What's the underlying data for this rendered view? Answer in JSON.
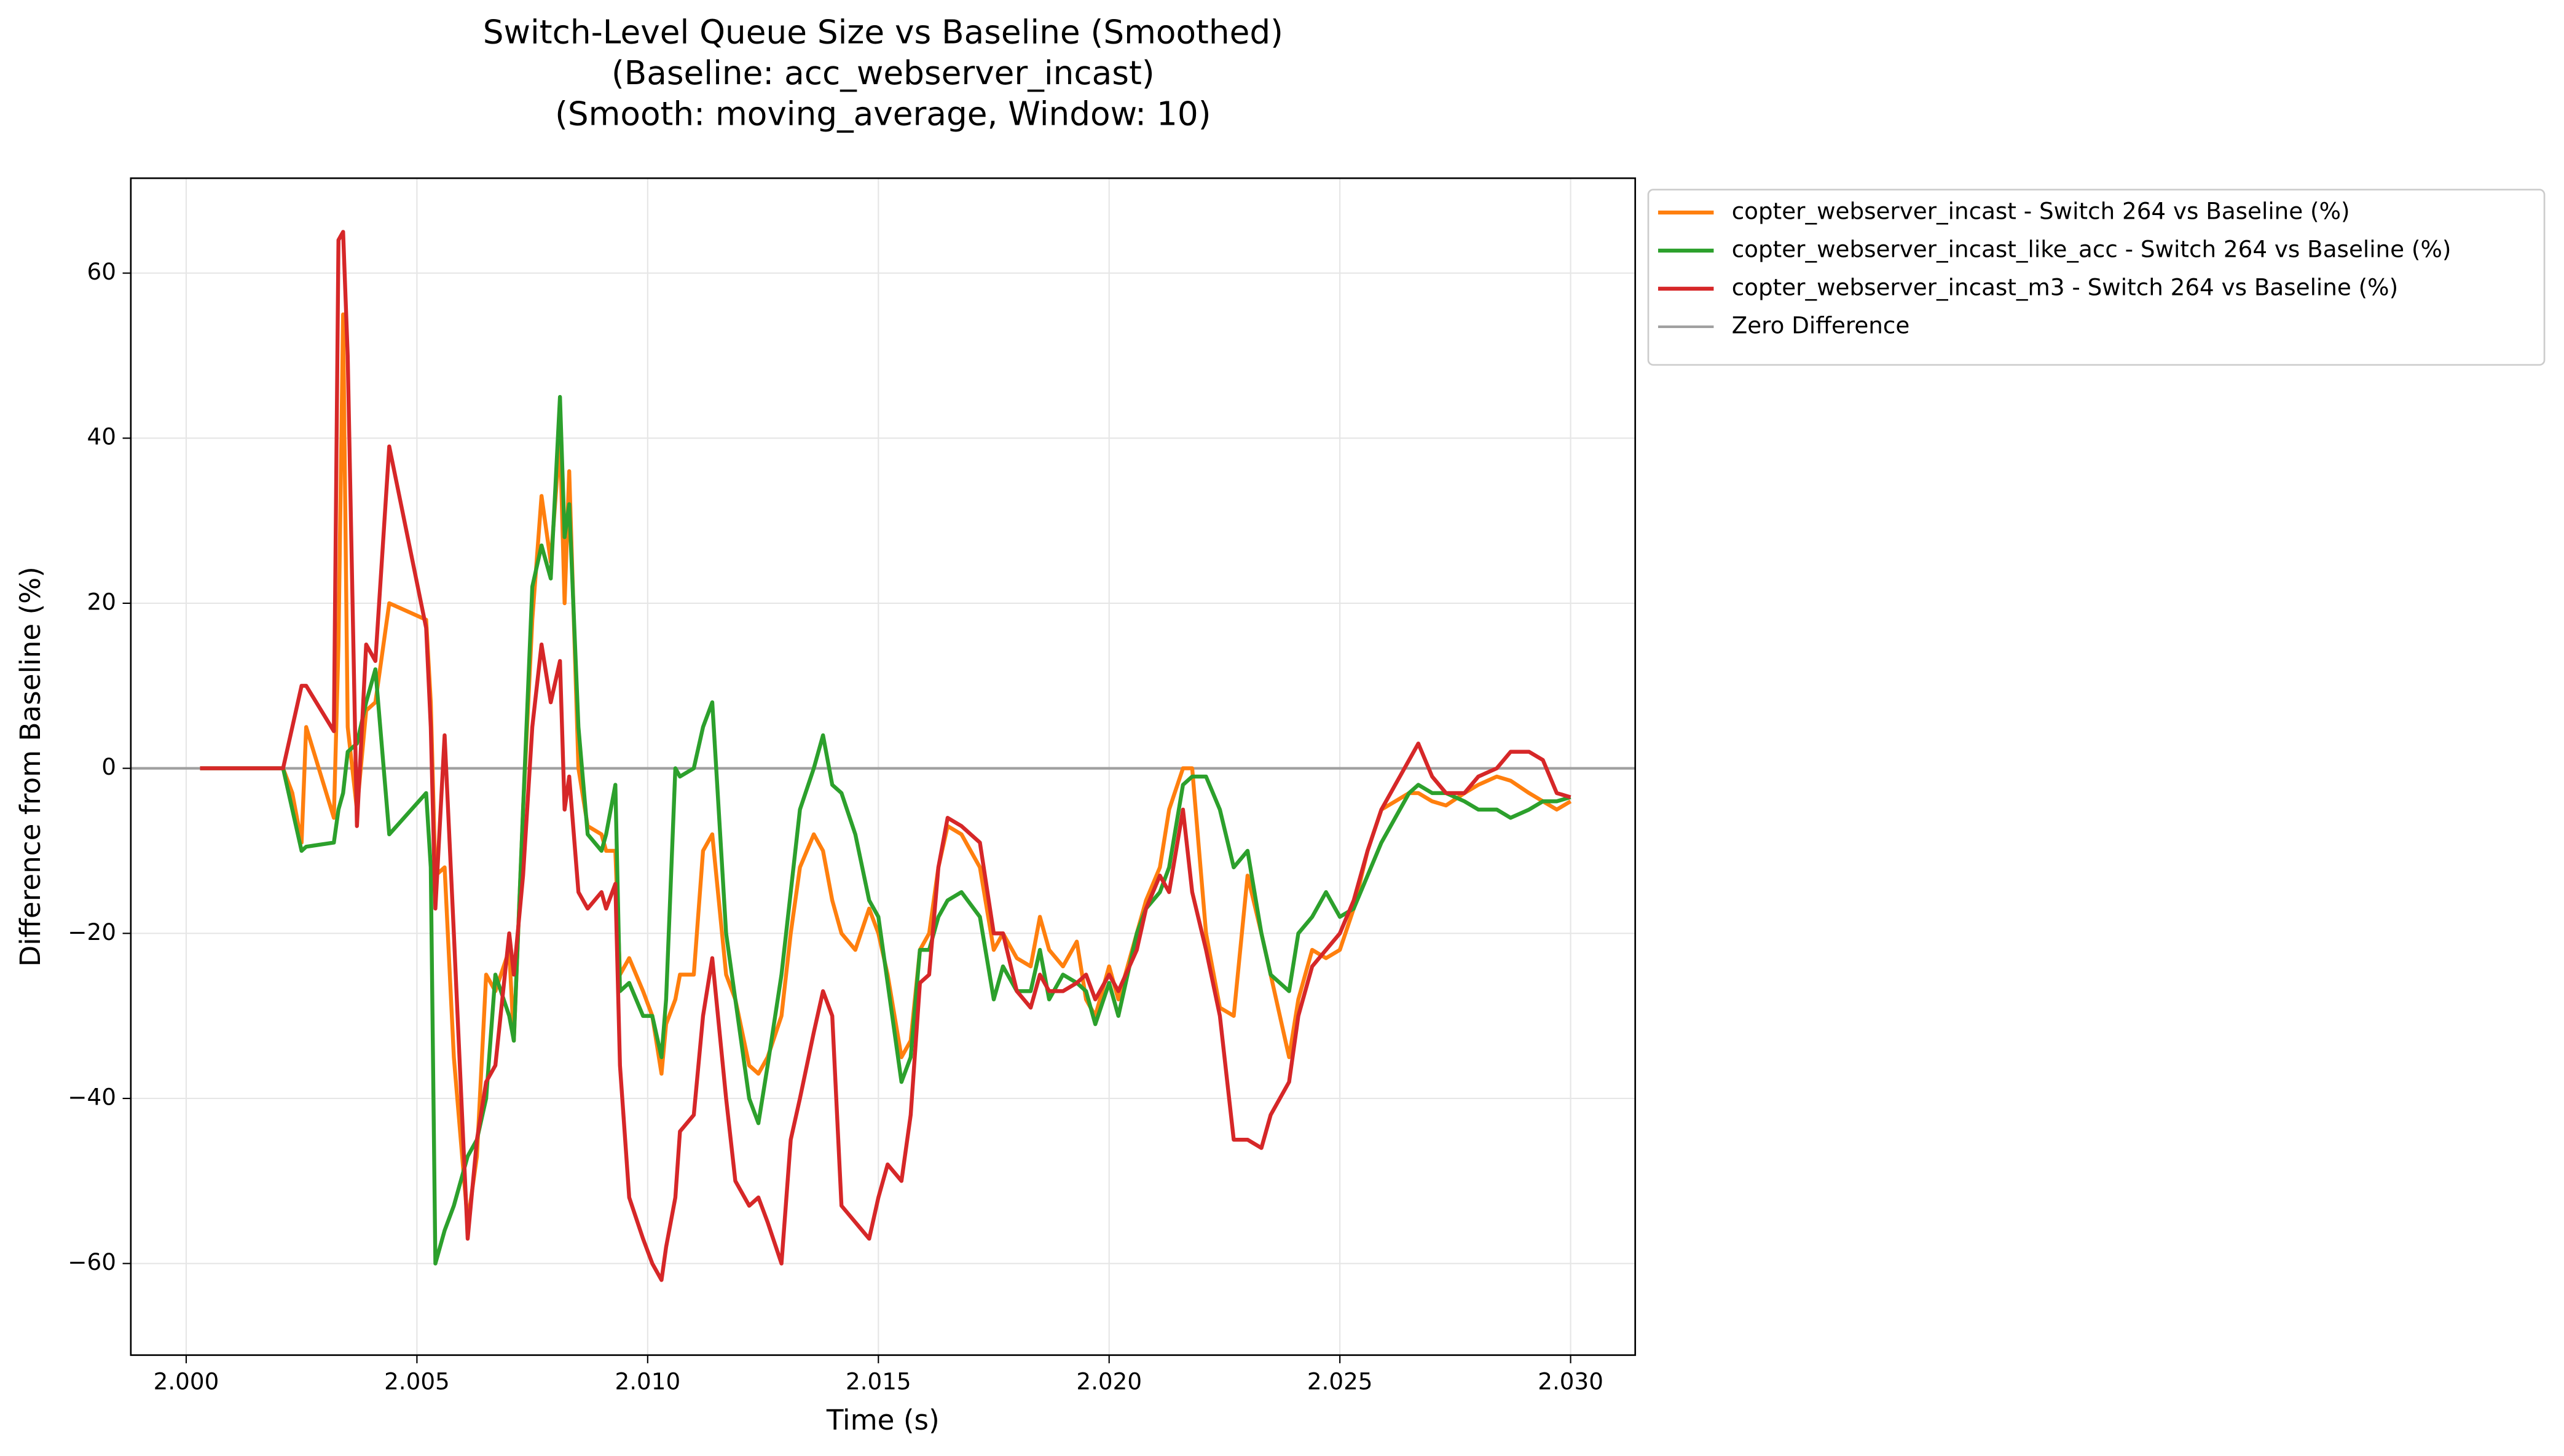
{
  "chart_data": {
    "type": "line",
    "title": [
      "Switch-Level Queue Size vs Baseline (Smoothed)",
      "(Baseline: acc_webserver_incast)",
      "(Smooth: moving_average, Window: 10)"
    ],
    "x_label": "Time (s)",
    "y_label": "Difference from Baseline (%)",
    "x": [
      2.0003,
      2.0021,
      2.0023,
      2.0025,
      2.0026,
      2.0032,
      2.0033,
      2.0034,
      2.0035,
      2.0037,
      2.0039,
      2.0041,
      2.0044,
      2.0052,
      2.0053,
      2.0054,
      2.0056,
      2.0058,
      2.0061,
      2.0063,
      2.0065,
      2.0067,
      2.007,
      2.0071,
      2.0073,
      2.0075,
      2.0077,
      2.0079,
      2.0081,
      2.0082,
      2.0083,
      2.0085,
      2.0087,
      2.009,
      2.0091,
      2.0093,
      2.0094,
      2.0096,
      2.0099,
      2.0101,
      2.0103,
      2.0104,
      2.0106,
      2.0107,
      2.011,
      2.0112,
      2.0114,
      2.0117,
      2.0119,
      2.0122,
      2.0124,
      2.0126,
      2.0129,
      2.0131,
      2.0133,
      2.0136,
      2.0138,
      2.014,
      2.0142,
      2.0145,
      2.0148,
      2.015,
      2.0152,
      2.0155,
      2.0157,
      2.0159,
      2.0161,
      2.0163,
      2.0165,
      2.0168,
      2.0172,
      2.0175,
      2.0177,
      2.018,
      2.0183,
      2.0185,
      2.0187,
      2.019,
      2.0193,
      2.0195,
      2.0197,
      2.02,
      2.0202,
      2.0206,
      2.0208,
      2.0211,
      2.0213,
      2.0216,
      2.0218,
      2.0221,
      2.0224,
      2.0227,
      2.023,
      2.0233,
      2.0235,
      2.0239,
      2.0241,
      2.0244,
      2.0247,
      2.025,
      2.0253,
      2.0256,
      2.0259,
      2.0262,
      2.0265,
      2.0267,
      2.027,
      2.0273,
      2.0277,
      2.028,
      2.0284,
      2.0287,
      2.0291,
      2.0294,
      2.0297,
      2.03
    ],
    "series": [
      {
        "name": "copter_webserver_incast - Switch 264 vs Baseline (%)",
        "color": "#ff7f0e",
        "values": [
          0,
          0,
          -3,
          -9,
          5,
          -6,
          15,
          55,
          5,
          -5,
          7,
          8,
          20,
          18,
          8,
          -13,
          -12,
          -35,
          -55,
          -47,
          -25,
          -27,
          -22,
          -33,
          -5,
          18,
          33,
          25,
          40,
          20,
          36,
          0,
          -7,
          -8,
          -10,
          -10,
          -25,
          -23,
          -27,
          -30,
          -37,
          -31,
          -28,
          -25,
          -25,
          -10,
          -8,
          -25,
          -28,
          -36,
          -37,
          -35,
          -30,
          -20,
          -12,
          -8,
          -10,
          -16,
          -20,
          -22,
          -17,
          -20,
          -25,
          -35,
          -33,
          -22,
          -20,
          -12,
          -7,
          -8,
          -12,
          -22,
          -20,
          -23,
          -24,
          -18,
          -22,
          -24,
          -21,
          -28,
          -30,
          -24,
          -28,
          -20,
          -16,
          -12,
          -5,
          0,
          0,
          -20,
          -29,
          -30,
          -13,
          -20,
          -25,
          -35,
          -28,
          -22,
          -23,
          -22,
          -17,
          -10,
          -5,
          -4,
          -3,
          -3,
          -4,
          -4.5,
          -3,
          -2,
          -1,
          -1.5,
          -3,
          -4,
          -5,
          -4
        ]
      },
      {
        "name": "copter_webserver_incast_like_acc - Switch 264 vs Baseline (%)",
        "color": "#2ca02c",
        "values": [
          0,
          0,
          -5,
          -10,
          -9.5,
          -9,
          -5,
          -3,
          2,
          3,
          8,
          12,
          -8,
          -3,
          -12,
          -60,
          -56,
          -53,
          -47,
          -45,
          -40,
          -25,
          -30,
          -33,
          -5,
          22,
          27,
          23,
          45,
          28,
          32,
          5,
          -8,
          -10,
          -8,
          -2,
          -27,
          -26,
          -30,
          -30,
          -35,
          -28,
          0,
          -1,
          0,
          5,
          8,
          -20,
          -28,
          -40,
          -43,
          -36,
          -25,
          -15,
          -5,
          0,
          4,
          -2,
          -3,
          -8,
          -16,
          -18,
          -26,
          -38,
          -35,
          -22,
          -22,
          -18,
          -16,
          -15,
          -18,
          -28,
          -24,
          -27,
          -27,
          -22,
          -28,
          -25,
          -26,
          -27,
          -31,
          -26,
          -30,
          -20,
          -17,
          -15,
          -12,
          -2,
          -1,
          -1,
          -5,
          -12,
          -10,
          -20,
          -25,
          -27,
          -20,
          -18,
          -15,
          -18,
          -17,
          -13,
          -9,
          -6,
          -3,
          -2,
          -3,
          -3,
          -4,
          -5,
          -5,
          -6,
          -5,
          -4,
          -4,
          -3.5
        ]
      },
      {
        "name": "copter_webserver_incast_m3 - Switch 264 vs Baseline (%)",
        "color": "#d62728",
        "values": [
          0,
          0,
          5,
          10,
          10,
          4.5,
          64,
          65,
          50,
          -7,
          15,
          13,
          39,
          17,
          5,
          -17,
          4,
          -20,
          -57,
          -45,
          -38,
          -36,
          -20,
          -25,
          -13,
          5,
          15,
          8,
          13,
          -5,
          -1,
          -15,
          -17,
          -15,
          -17,
          -14,
          -36,
          -52,
          -57,
          -60,
          -62,
          -58,
          -52,
          -44,
          -42,
          -30,
          -23,
          -40,
          -50,
          -53,
          -52,
          -55,
          -60,
          -45,
          -40,
          -32,
          -27,
          -30,
          -53,
          -55,
          -57,
          -52,
          -48,
          -50,
          -42,
          -26,
          -25,
          -12,
          -6,
          -7,
          -9,
          -20,
          -20,
          -27,
          -29,
          -25,
          -27,
          -27,
          -26,
          -25,
          -28,
          -25,
          -27,
          -22,
          -17,
          -13,
          -15,
          -5,
          -15,
          -22,
          -30,
          -45,
          -45,
          -46,
          -42,
          -38,
          -30,
          -24,
          -22,
          -20,
          -16,
          -10,
          -5,
          -2,
          1,
          3,
          -1,
          -3,
          -3,
          -1,
          0,
          2,
          2,
          1,
          -3,
          -3.5
        ]
      }
    ],
    "hlines": [
      {
        "name": "Zero Difference",
        "y": 0,
        "color": "#a0a0a0"
      }
    ],
    "xlim": [
      1.9988,
      2.0314
    ],
    "ylim": [
      -71.1,
      71.5
    ],
    "xticks": [
      {
        "value": 2.0,
        "label": "2.000"
      },
      {
        "value": 2.005,
        "label": "2.005"
      },
      {
        "value": 2.01,
        "label": "2.010"
      },
      {
        "value": 2.015,
        "label": "2.015"
      },
      {
        "value": 2.02,
        "label": "2.020"
      },
      {
        "value": 2.025,
        "label": "2.025"
      },
      {
        "value": 2.03,
        "label": "2.030"
      }
    ],
    "yticks": [
      {
        "value": -60,
        "label": "−60"
      },
      {
        "value": -40,
        "label": "−40"
      },
      {
        "value": -20,
        "label": "−20"
      },
      0,
      20,
      40,
      60
    ],
    "grid": true,
    "legend": "outside-upper-right"
  }
}
